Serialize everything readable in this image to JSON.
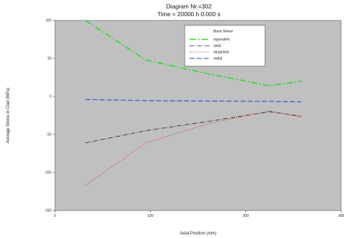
{
  "chart_data": {
    "type": "line",
    "title": "Diagram Nr.=302",
    "subtitle": "Time =  20000 h    0.000 s",
    "xlabel": "Axial Position (mm)",
    "ylabel": "Average Stress in Clad (MPa)",
    "xlim": [
      0,
      300
    ],
    "ylim": [
      -150,
      100
    ],
    "xticks": [
      0,
      100,
      200,
      300
    ],
    "yticks": [
      100,
      50,
      0,
      -50,
      -100,
      -150
    ],
    "grid": false,
    "background": "#c0c0c0",
    "legend": {
      "title": "Burst Stress",
      "placement": "top-right"
    },
    "series": [
      {
        "name": "equivalent",
        "color": "#22e022",
        "dash": "9,3,2,3",
        "width": 1.6,
        "x": [
          32,
          95,
          160,
          225,
          258
        ],
        "y": [
          100,
          48,
          30,
          14,
          20
        ]
      },
      {
        "name": "axial",
        "color": "#111111",
        "dash": "6,2,1,2",
        "width": 0.8,
        "x": [
          32,
          95,
          160,
          225,
          258
        ],
        "y": [
          -61,
          -45,
          -33,
          -20,
          -26
        ]
      },
      {
        "name": "tangential",
        "color": "#e03030",
        "dash": "1.2,1.6",
        "width": 0.9,
        "x": [
          32,
          95,
          160,
          225,
          258
        ],
        "y": [
          -117,
          -61,
          -36,
          -19,
          -27
        ]
      },
      {
        "name": "radial",
        "color": "#2244dd",
        "dash": "7,3",
        "width": 1.1,
        "x": [
          32,
          95,
          160,
          225,
          258
        ],
        "y": [
          -4,
          -5.5,
          -6,
          -6.5,
          -7
        ]
      }
    ]
  }
}
